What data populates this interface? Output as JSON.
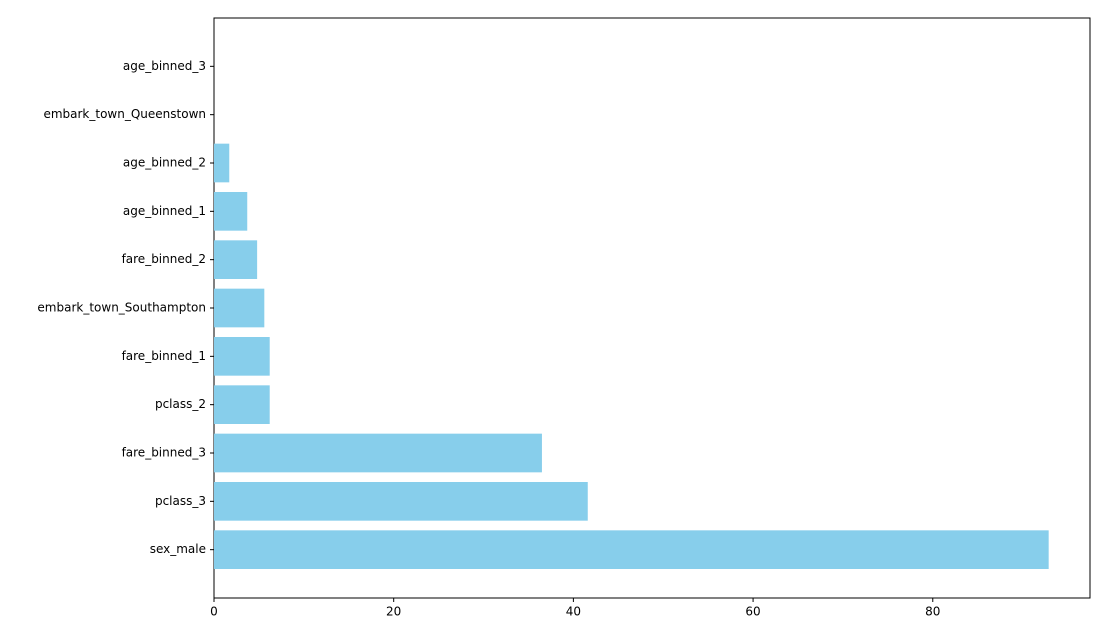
{
  "chart_data": {
    "type": "barh",
    "categories": [
      "sex_male",
      "pclass_3",
      "fare_binned_3",
      "pclass_2",
      "fare_binned_1",
      "embark_town_Southampton",
      "fare_binned_2",
      "age_binned_1",
      "age_binned_2",
      "embark_town_Queenstown",
      "age_binned_3"
    ],
    "values": [
      92.9,
      41.6,
      36.5,
      6.2,
      6.2,
      5.6,
      4.8,
      3.7,
      1.7,
      0,
      0
    ],
    "color": "#87ceeb",
    "xlim": [
      0,
      97.5
    ],
    "xticks": [
      0,
      20,
      40,
      60,
      80
    ],
    "grid": false
  }
}
